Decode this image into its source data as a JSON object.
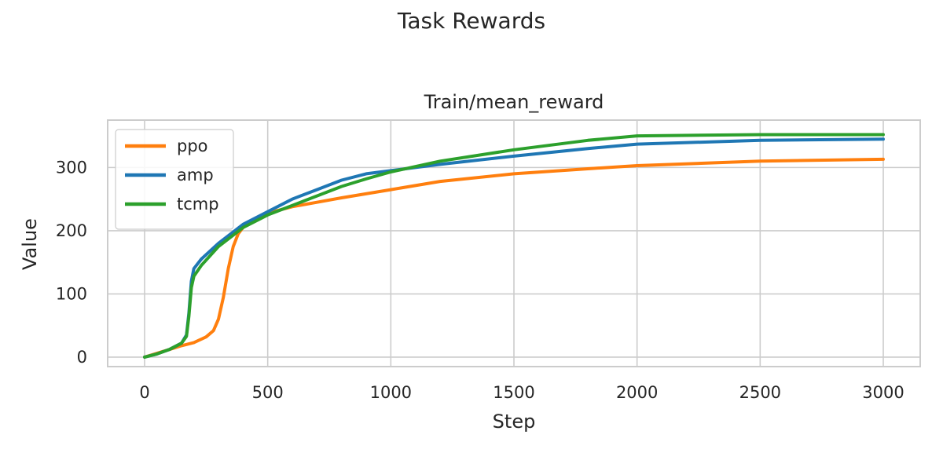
{
  "figure": {
    "suptitle": "Task Rewards"
  },
  "chart_data": {
    "type": "line",
    "title": "Train/mean_reward",
    "xlabel": "Step",
    "ylabel": "Value",
    "xlim": [
      -150,
      3150
    ],
    "ylim": [
      -15,
      375
    ],
    "x_ticks": [
      0,
      500,
      1000,
      1500,
      2000,
      2500,
      3000
    ],
    "y_ticks": [
      0,
      100,
      200,
      300
    ],
    "grid": true,
    "legend_position": "top-left",
    "series": [
      {
        "name": "ppo",
        "color": "#ff7f0e",
        "x": [
          0,
          50,
          100,
          150,
          200,
          250,
          280,
          300,
          320,
          340,
          360,
          380,
          400,
          450,
          500,
          600,
          700,
          800,
          1000,
          1200,
          1500,
          1800,
          2000,
          2500,
          3000
        ],
        "y": [
          0,
          6,
          12,
          18,
          23,
          32,
          42,
          60,
          95,
          140,
          175,
          195,
          205,
          218,
          228,
          238,
          245,
          252,
          265,
          278,
          290,
          298,
          303,
          310,
          313
        ]
      },
      {
        "name": "amp",
        "color": "#1f77b4",
        "x": [
          0,
          50,
          100,
          150,
          170,
          180,
          190,
          200,
          230,
          300,
          400,
          500,
          600,
          700,
          800,
          900,
          1000,
          1200,
          1500,
          1800,
          2000,
          2500,
          3000
        ],
        "y": [
          0,
          5,
          12,
          22,
          35,
          70,
          120,
          140,
          155,
          180,
          210,
          230,
          250,
          265,
          280,
          290,
          295,
          305,
          318,
          330,
          337,
          343,
          345
        ]
      },
      {
        "name": "tcmp",
        "color": "#2ca02c",
        "x": [
          0,
          50,
          100,
          150,
          170,
          180,
          190,
          200,
          230,
          300,
          400,
          500,
          600,
          700,
          800,
          900,
          1000,
          1200,
          1500,
          1800,
          2000,
          2500,
          3000
        ],
        "y": [
          0,
          5,
          12,
          22,
          33,
          65,
          110,
          128,
          145,
          175,
          205,
          225,
          240,
          255,
          270,
          282,
          293,
          310,
          328,
          343,
          350,
          352,
          352
        ]
      }
    ]
  }
}
